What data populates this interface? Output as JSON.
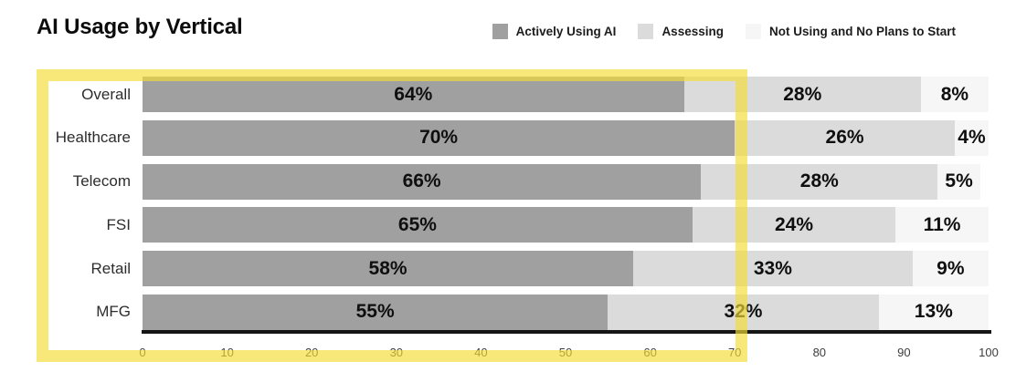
{
  "title": "AI Usage by Vertical",
  "chart_data": {
    "type": "bar",
    "orientation": "horizontal_stacked",
    "title": "AI Usage by Vertical",
    "categories": [
      "Overall",
      "Healthcare",
      "Telecom",
      "FSI",
      "Retail",
      "MFG"
    ],
    "series": [
      {
        "name": "Actively Using AI",
        "color": "#a0a0a0",
        "values": [
          64,
          70,
          66,
          65,
          58,
          55
        ]
      },
      {
        "name": "Assessing",
        "color": "#dbdbdb",
        "values": [
          28,
          26,
          28,
          24,
          33,
          32
        ]
      },
      {
        "name": "Not Using and No Plans to Start",
        "color": "#f6f6f6",
        "values": [
          8,
          4,
          5,
          11,
          9,
          13
        ]
      }
    ],
    "value_suffix": "%",
    "xlim": [
      0,
      100
    ],
    "x_ticks": [
      0,
      10,
      20,
      30,
      40,
      50,
      60,
      70,
      80,
      90,
      100
    ],
    "grid": false,
    "legend_position": "top-right"
  },
  "annotation": {
    "type": "highlight-rectangle",
    "color": "#f4da34",
    "note": "semi-transparent yellow box highlighting all category rows from x=0 to about x=70 on the axis"
  }
}
